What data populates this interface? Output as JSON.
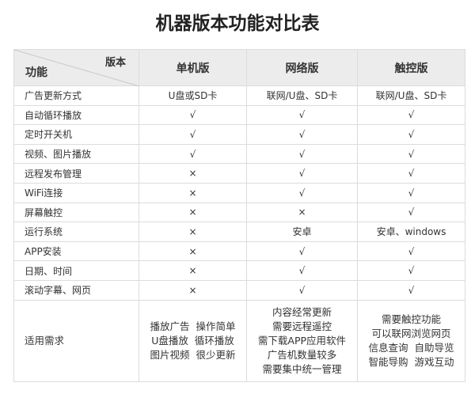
{
  "title": "机器版本功能对比表",
  "header": {
    "corner_version": "版本",
    "corner_feature": "功能",
    "columns": [
      "单机版",
      "网络版",
      "触控版"
    ]
  },
  "rows": [
    {
      "feature": "广告更新方式",
      "values": [
        "U盘或SD卡",
        "联网/U盘、SD卡",
        "联网/U盘、SD卡"
      ]
    },
    {
      "feature": "自动循环播放",
      "values": [
        "√",
        "√",
        "√"
      ]
    },
    {
      "feature": "定时开关机",
      "values": [
        "√",
        "√",
        "√"
      ]
    },
    {
      "feature": "视频、图片播放",
      "values": [
        "√",
        "√",
        "√"
      ]
    },
    {
      "feature": "远程发布管理",
      "values": [
        "×",
        "√",
        "√"
      ]
    },
    {
      "feature": "WiFi连接",
      "values": [
        "×",
        "√",
        "√"
      ]
    },
    {
      "feature": "屏幕触控",
      "values": [
        "×",
        "×",
        "√"
      ]
    },
    {
      "feature": "运行系统",
      "values": [
        "×",
        "安卓",
        "安卓、windows"
      ]
    },
    {
      "feature": "APP安装",
      "values": [
        "×",
        "√",
        "√"
      ]
    },
    {
      "feature": "日期、时间",
      "values": [
        "×",
        "√",
        "√"
      ]
    },
    {
      "feature": "滚动字幕、网页",
      "values": [
        "×",
        "√",
        "√"
      ]
    }
  ],
  "needs": {
    "feature": "适用需求",
    "values": [
      [
        "播放广告  操作简单",
        "U盘播放  循环播放",
        "图片视频  很少更新"
      ],
      [
        "内容经常更新",
        "需要远程遥控",
        "需下载APP应用软件",
        "广告机数量较多",
        "需要集中统一管理"
      ],
      [
        "需要触控功能",
        "可以联网浏览网页",
        "信息查询  自助导览",
        "智能导购  游戏互动"
      ]
    ]
  }
}
